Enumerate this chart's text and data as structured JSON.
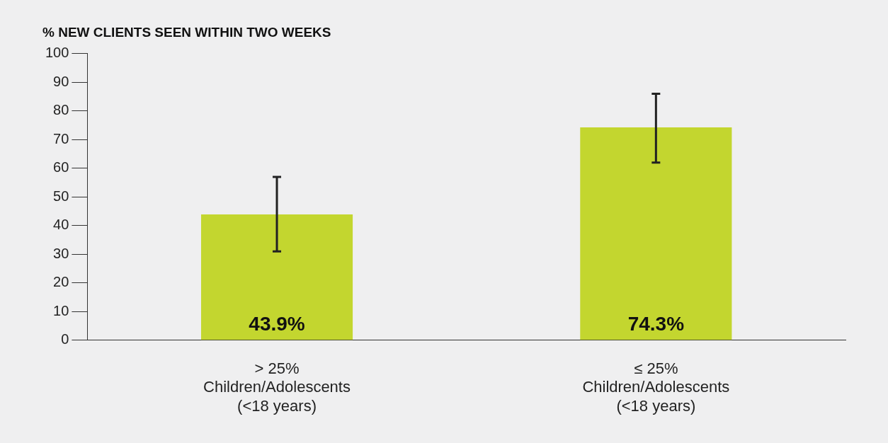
{
  "chart_data": {
    "type": "bar",
    "ylabel": "% NEW CLIENTS SEEN WITHIN TWO WEEKS",
    "categories": [
      "> 25%\nChildren/Adolescents\n(<18 years)",
      "≤ 25%\nChildren/Adolescents\n(<18 years)"
    ],
    "values": [
      43.9,
      74.3
    ],
    "color": "#c3d62f",
    "errors": [
      [
        31,
        57
      ],
      [
        62,
        86
      ]
    ],
    "value_labels": [
      "43.9%",
      "74.3%"
    ],
    "ylim": [
      0,
      100
    ],
    "yticks": [
      0,
      10,
      20,
      30,
      40,
      50,
      60,
      70,
      80,
      90,
      100
    ],
    "grid": false,
    "legend": false
  }
}
